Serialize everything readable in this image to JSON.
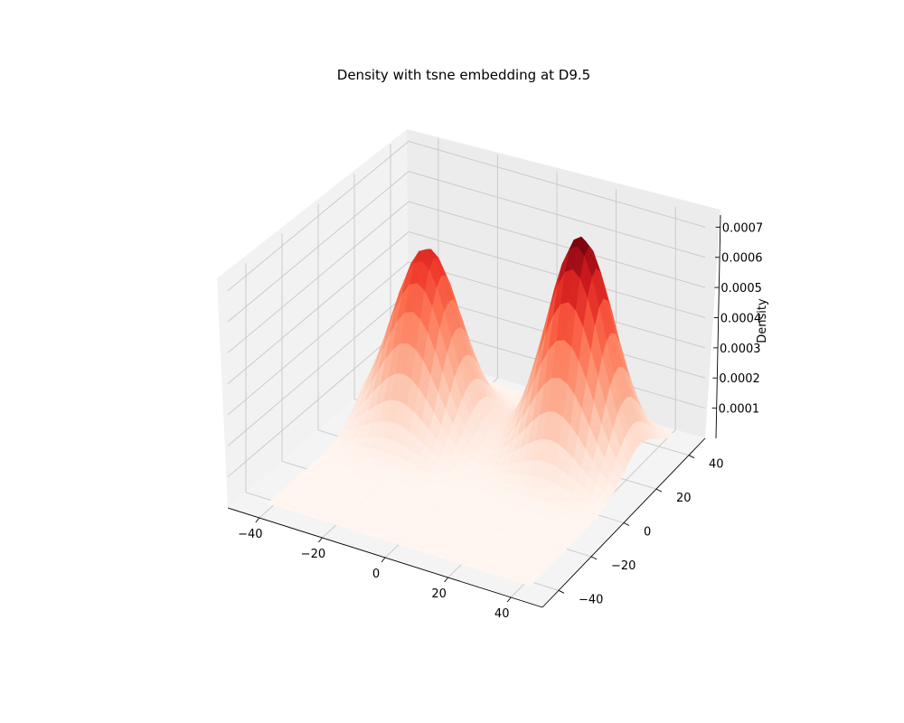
{
  "chart_data": {
    "type": "surface",
    "title": "Density with tsne embedding at D9.5",
    "xlabel": "",
    "ylabel": "",
    "zlabel": "Density",
    "x_ticks": [
      "−40",
      "−20",
      "0",
      "20",
      "40"
    ],
    "y_ticks": [
      "−40",
      "−20",
      "0",
      "20",
      "40"
    ],
    "z_ticks": [
      "0.0001",
      "0.0002",
      "0.0003",
      "0.0004",
      "0.0005",
      "0.0006",
      "0.0007"
    ],
    "x_range": [
      -50,
      50
    ],
    "y_range": [
      -50,
      50
    ],
    "z_range": [
      0,
      0.00072
    ],
    "colormap": "Reds",
    "grid": true,
    "peaks": [
      {
        "x": -25,
        "y": 18,
        "z": 0.00058,
        "sigma": 10
      },
      {
        "x": 22,
        "y": 25,
        "z": 0.00072,
        "sigma": 10
      }
    ]
  }
}
